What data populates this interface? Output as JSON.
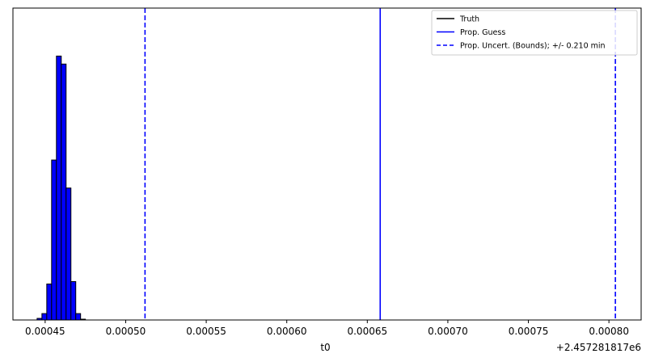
{
  "chart_data": {
    "type": "histogram",
    "xlabel": "t0",
    "offset_label": "+2.457281817e6",
    "xlim": [
      0.00043,
      0.00082
    ],
    "x_ticks": [
      {
        "value": 0.00045,
        "label": "0.00045"
      },
      {
        "value": 0.0005,
        "label": "0.00050"
      },
      {
        "value": 0.00055,
        "label": "0.00055"
      },
      {
        "value": 0.0006,
        "label": "0.00060"
      },
      {
        "value": 0.00065,
        "label": "0.00065"
      },
      {
        "value": 0.0007,
        "label": "0.00070"
      },
      {
        "value": 0.00075,
        "label": "0.00075"
      },
      {
        "value": 0.0008,
        "label": "0.00080"
      }
    ],
    "ylim": [
      0,
      390
    ],
    "y_ticks_visible": false,
    "bin_width": 3e-06,
    "bins": [
      {
        "x": 0.000445,
        "count": 2
      },
      {
        "x": 0.000448,
        "count": 8
      },
      {
        "x": 0.000451,
        "count": 45
      },
      {
        "x": 0.000454,
        "count": 200
      },
      {
        "x": 0.000457,
        "count": 330
      },
      {
        "x": 0.00046,
        "count": 320
      },
      {
        "x": 0.000463,
        "count": 165
      },
      {
        "x": 0.000466,
        "count": 48
      },
      {
        "x": 0.000469,
        "count": 8
      },
      {
        "x": 0.000472,
        "count": 1
      }
    ],
    "bar_color": "#0000ff",
    "bar_edge_color": "#000000",
    "vlines": [
      {
        "series": "Prop. Guess",
        "x": 0.000658,
        "style": "solid",
        "color": "#0000ff"
      },
      {
        "series": "Prop. Uncert. (Bounds); +/- 0.210 min",
        "x": 0.000512,
        "style": "dashed",
        "color": "#0000ff"
      },
      {
        "series": "Prop. Uncert. (Bounds); +/- 0.210 min",
        "x": 0.000804,
        "style": "dashed",
        "color": "#0000ff"
      }
    ],
    "legend": {
      "position": "top-right",
      "entries": [
        {
          "label": "Truth",
          "color": "#000000",
          "style": "solid"
        },
        {
          "label": "Prop. Guess",
          "color": "#0000ff",
          "style": "solid"
        },
        {
          "label": "Prop. Uncert. (Bounds); +/- 0.210 min",
          "color": "#0000ff",
          "style": "dashed"
        }
      ]
    },
    "grid": false
  }
}
